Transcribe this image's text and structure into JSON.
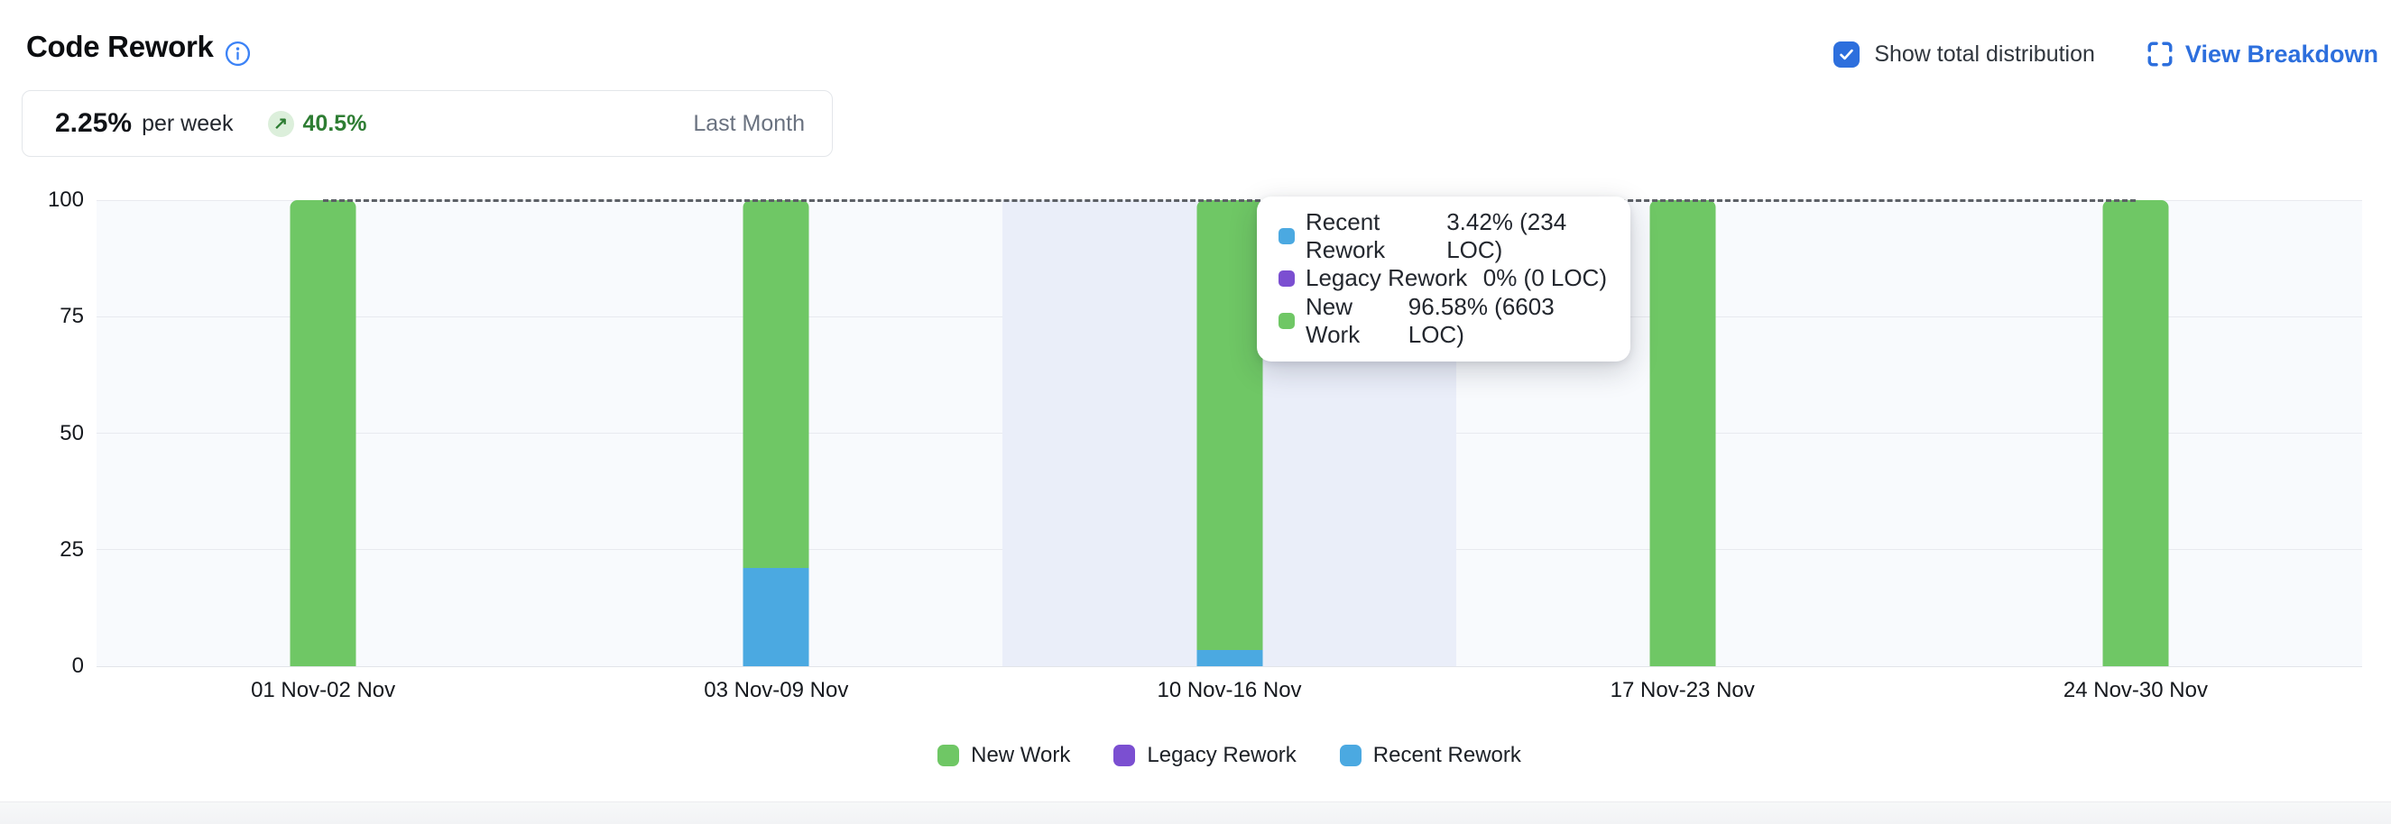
{
  "header": {
    "title": "Code Rework",
    "show_total_label": "Show total distribution",
    "show_total_checked": true,
    "view_breakdown_label": "View Breakdown"
  },
  "stat_card": {
    "value": "2.25%",
    "unit": "per week",
    "trend_arrow": "↗",
    "trend": "40.5%",
    "period": "Last Month"
  },
  "colors": {
    "new_work": "#6fc765",
    "legacy_rework": "#7b4fd1",
    "recent_rework": "#4ba9e1",
    "accent_blue": "#2d6fdd",
    "trend_green": "#2e7d33",
    "info_blue": "#3b82f6"
  },
  "chart_data": {
    "type": "bar",
    "stacked": true,
    "title": "Code Rework",
    "categories": [
      "01 Nov-02 Nov",
      "03 Nov-09 Nov",
      "10 Nov-16 Nov",
      "17 Nov-23 Nov",
      "24 Nov-30 Nov"
    ],
    "series": [
      {
        "name": "Recent Rework",
        "color_key": "recent_rework",
        "values": [
          0,
          21,
          3.42,
          0,
          0
        ]
      },
      {
        "name": "Legacy Rework",
        "color_key": "legacy_rework",
        "values": [
          0,
          0,
          0,
          0,
          0
        ]
      },
      {
        "name": "New Work",
        "color_key": "new_work",
        "values": [
          100,
          79,
          96.58,
          100,
          100
        ]
      }
    ],
    "ylim": [
      0,
      100
    ],
    "yticks": [
      0,
      25,
      50,
      75,
      100
    ],
    "grid": true,
    "total_line": {
      "value": 100,
      "style": "dashed"
    },
    "hovered_index": 2,
    "legend_position": "bottom",
    "legend": [
      {
        "label": "New Work",
        "color_key": "new_work"
      },
      {
        "label": "Legacy Rework",
        "color_key": "legacy_rework"
      },
      {
        "label": "Recent Rework",
        "color_key": "recent_rework"
      }
    ]
  },
  "tooltip": {
    "rows": [
      {
        "name": "Recent Rework",
        "value": "3.42% (234 LOC)",
        "color_key": "recent_rework"
      },
      {
        "name": "Legacy Rework",
        "value": "0% (0 LOC)",
        "color_key": "legacy_rework"
      },
      {
        "name": "New Work",
        "value": "96.58% (6603 LOC)",
        "color_key": "new_work"
      }
    ]
  }
}
